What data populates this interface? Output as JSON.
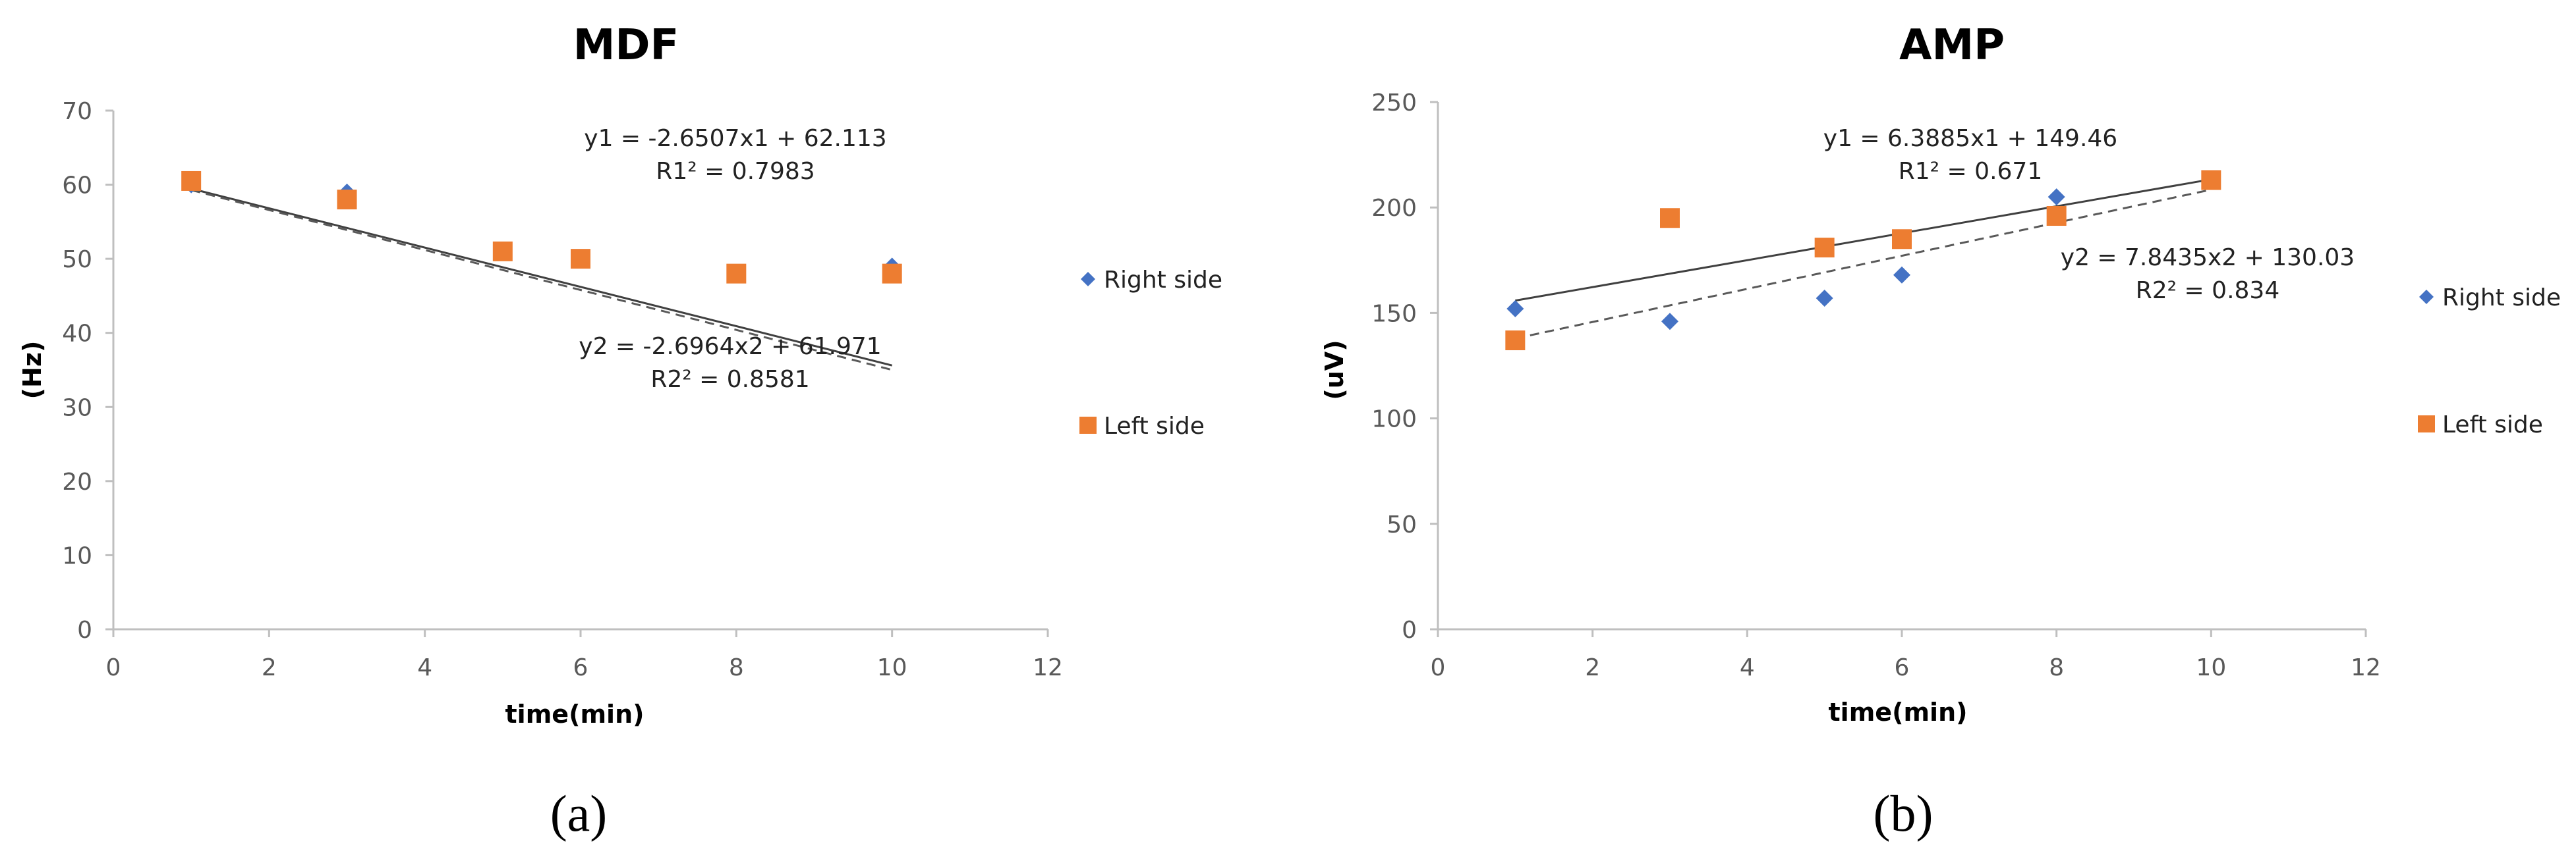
{
  "colors": {
    "right_side": "#4472C4",
    "left_side": "#ED7D31",
    "axis": "#BFBFBF",
    "trend_right": "#404040",
    "trend_left": "#595959"
  },
  "chart_data": [
    {
      "type": "scatter",
      "panel": "a",
      "panel_label": "(a)",
      "title": "MDF",
      "xlabel": "time(min)",
      "ylabel": "(Hz)",
      "xlim": [
        0,
        12
      ],
      "ylim": [
        0,
        70
      ],
      "xticks": [
        0,
        2,
        4,
        6,
        8,
        10,
        12
      ],
      "yticks": [
        0,
        10,
        20,
        30,
        40,
        50,
        60,
        70
      ],
      "legend": "right",
      "grid": false,
      "series": [
        {
          "name": "Right side",
          "marker": "diamond",
          "x": [
            1,
            3,
            5,
            6,
            8,
            10
          ],
          "y": [
            60,
            59,
            51,
            50,
            48,
            49
          ]
        },
        {
          "name": "Left side",
          "marker": "square",
          "x": [
            1,
            3,
            5,
            6,
            8,
            10
          ],
          "y": [
            60.5,
            58,
            51,
            50,
            48,
            48
          ]
        }
      ],
      "trendlines": [
        {
          "series": "Right side",
          "style": "solid",
          "slope": -2.6507,
          "intercept": 62.113,
          "x_range": [
            1,
            10
          ],
          "equation": "y1 = -2.6507x1 + 62.113",
          "r2": "R1² = 0.7983"
        },
        {
          "series": "Left side",
          "style": "dashed",
          "slope": -2.6964,
          "intercept": 61.971,
          "x_range": [
            1,
            10
          ],
          "equation": "y2 = -2.6964x2 + 61.971",
          "r2": "R2² = 0.8581"
        }
      ]
    },
    {
      "type": "scatter",
      "panel": "b",
      "panel_label": "(b)",
      "title": "AMP",
      "xlabel": "time(min)",
      "ylabel": "(uV)",
      "xlim": [
        0,
        12
      ],
      "ylim": [
        0,
        250
      ],
      "xticks": [
        0,
        2,
        4,
        6,
        8,
        10,
        12
      ],
      "yticks": [
        0,
        50,
        100,
        150,
        200,
        250
      ],
      "legend": "right",
      "grid": false,
      "series": [
        {
          "name": "Right side",
          "marker": "diamond",
          "x": [
            1,
            3,
            5,
            6,
            8,
            10
          ],
          "y": [
            152,
            146,
            157,
            168,
            205,
            213
          ]
        },
        {
          "name": "Left side",
          "marker": "square",
          "x": [
            1,
            3,
            5,
            6,
            8,
            10
          ],
          "y": [
            137,
            195,
            181,
            185,
            196,
            213
          ]
        }
      ],
      "trendlines": [
        {
          "series": "Right side",
          "style": "solid",
          "slope": 6.3885,
          "intercept": 149.46,
          "x_range": [
            1,
            10
          ],
          "equation": "y1 = 6.3885x1 + 149.46",
          "r2": "R1² = 0.671"
        },
        {
          "series": "Left side",
          "style": "dashed",
          "slope": 7.8435,
          "intercept": 130.03,
          "x_range": [
            1,
            10
          ],
          "equation": "y2 = 7.8435x2 + 130.03",
          "r2": "R2² = 0.834"
        }
      ]
    }
  ]
}
